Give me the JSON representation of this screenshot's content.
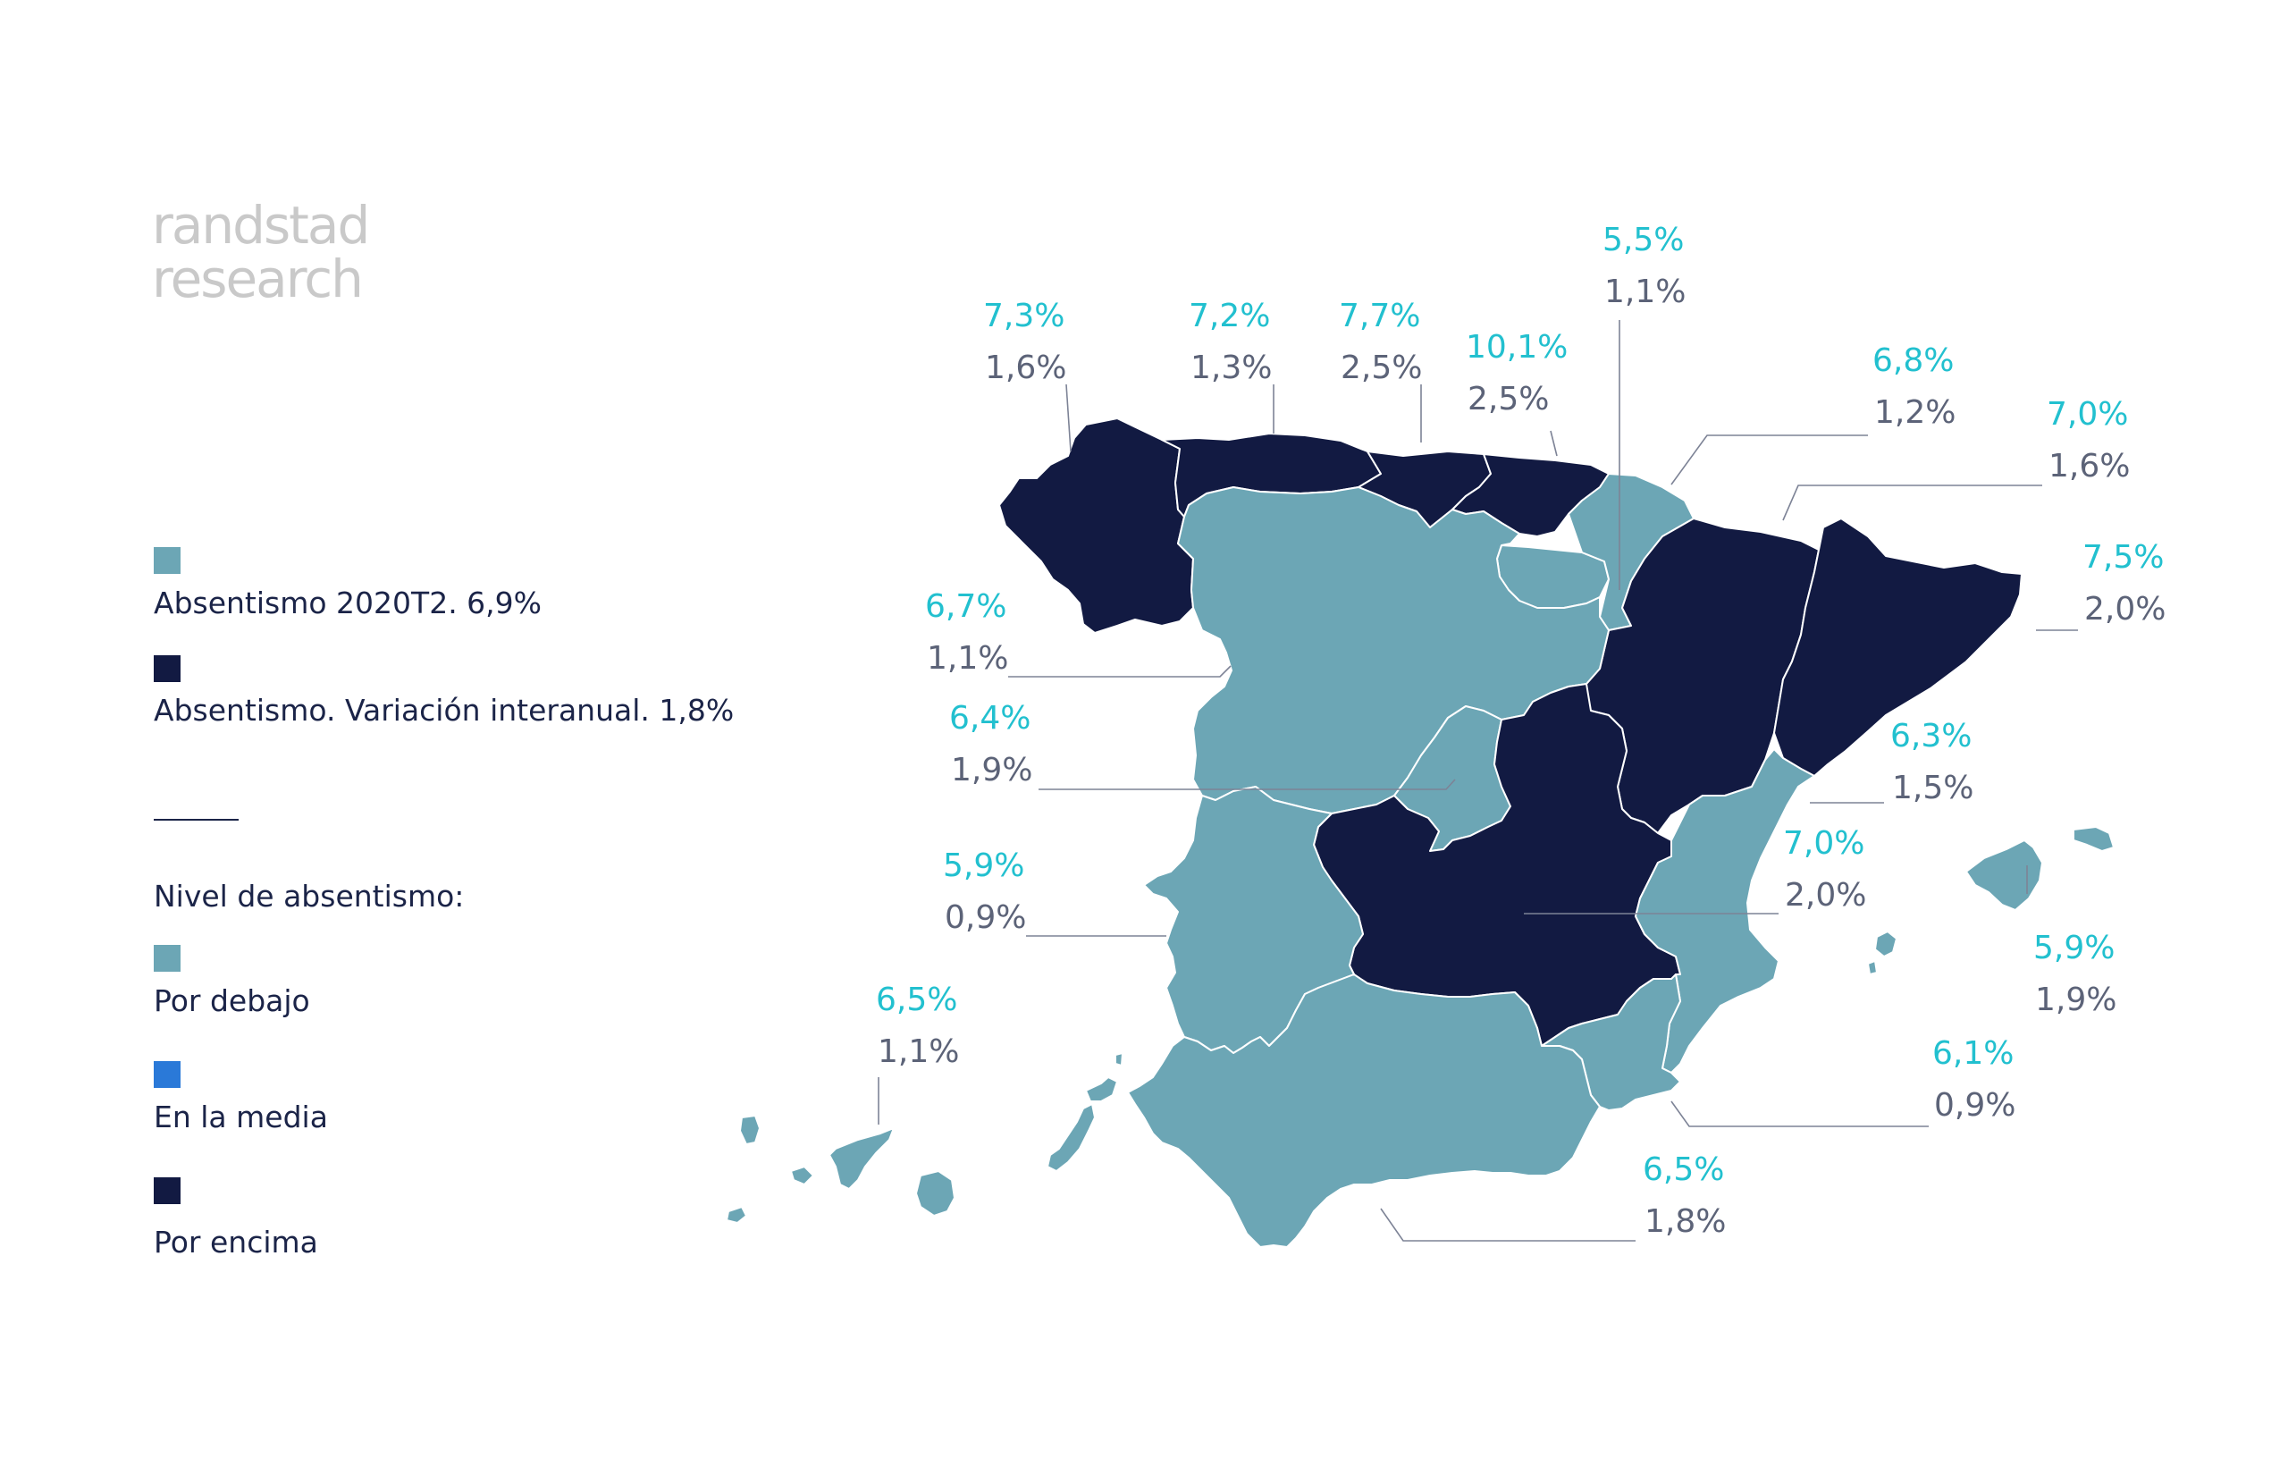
{
  "brand": {
    "line1": "randstad",
    "line2": "research"
  },
  "colors": {
    "below": "#6ca6b5",
    "average": "#2a79d8",
    "above": "#121a42",
    "top_label": "#22c0cf",
    "bottom_label": "#5c6378"
  },
  "legend": {
    "absentismo_label": "Absentismo 2020T2. 6,9%",
    "variacion_label": "Absentismo. Variación interanual. 1,8%",
    "nivel_title": "Nivel de absentismo:",
    "por_debajo": "Por debajo",
    "en_la_media": "En la media",
    "por_encima": "Por encima"
  },
  "regions": [
    {
      "id": "galicia",
      "level": "above",
      "absentismo": "7,3%",
      "variacion": "1,6%"
    },
    {
      "id": "asturias",
      "level": "above",
      "absentismo": "7,2%",
      "variacion": "1,3%"
    },
    {
      "id": "cantabria",
      "level": "above",
      "absentismo": "7,7%",
      "variacion": "2,5%"
    },
    {
      "id": "pais-vasco",
      "level": "above",
      "absentismo": "10,1%",
      "variacion": "2,5%"
    },
    {
      "id": "la-rioja",
      "level": "below",
      "absentismo": "5,5%",
      "variacion": "1,1%"
    },
    {
      "id": "navarra",
      "level": "below",
      "absentismo": "6,8%",
      "variacion": "1,2%"
    },
    {
      "id": "aragon",
      "level": "above",
      "absentismo": "7,0%",
      "variacion": "1,6%"
    },
    {
      "id": "cataluna",
      "level": "above",
      "absentismo": "7,5%",
      "variacion": "2,0%"
    },
    {
      "id": "castilla-leon",
      "level": "below",
      "absentismo": "6,7%",
      "variacion": "1,1%"
    },
    {
      "id": "madrid",
      "level": "below",
      "absentismo": "6,4%",
      "variacion": "1,9%"
    },
    {
      "id": "comunidad-valenciana",
      "level": "below",
      "absentismo": "6,3%",
      "variacion": "1,5%"
    },
    {
      "id": "castilla-la-mancha",
      "level": "above",
      "absentismo": "7,0%",
      "variacion": "2,0%"
    },
    {
      "id": "extremadura",
      "level": "below",
      "absentismo": "5,9%",
      "variacion": "0,9%"
    },
    {
      "id": "baleares",
      "level": "below",
      "absentismo": "5,9%",
      "variacion": "1,9%"
    },
    {
      "id": "canarias",
      "level": "below",
      "absentismo": "6,5%",
      "variacion": "1,1%"
    },
    {
      "id": "murcia",
      "level": "below",
      "absentismo": "6,1%",
      "variacion": "0,9%"
    },
    {
      "id": "andalucia",
      "level": "below",
      "absentismo": "6,5%",
      "variacion": "1,8%"
    }
  ]
}
